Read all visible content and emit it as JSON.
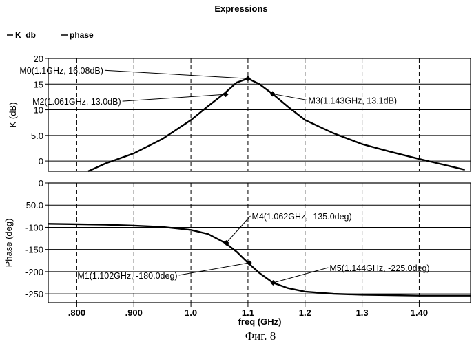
{
  "title": "Expressions",
  "legend": [
    "K_db",
    "phase"
  ],
  "caption": "Фиг. 8",
  "colors": {
    "trace": "#000000",
    "grid": "#000000",
    "background": "#ffffff"
  },
  "chart_data": [
    {
      "type": "line",
      "name": "top-panel",
      "ylabel": "K (dB)",
      "xlim": [
        0.75,
        1.49
      ],
      "ylim": [
        -2,
        20
      ],
      "grid": true,
      "yticks": [
        {
          "value": 20,
          "label": "20"
        },
        {
          "value": 15,
          "label": "15"
        },
        {
          "value": 10,
          "label": "10"
        },
        {
          "value": 5,
          "label": "5.0"
        },
        {
          "value": 0,
          "label": "0"
        }
      ],
      "series": [
        {
          "name": "K_db",
          "x": [
            0.82,
            0.85,
            0.9,
            0.95,
            1.0,
            1.03,
            1.06,
            1.08,
            1.1,
            1.12,
            1.143,
            1.17,
            1.2,
            1.25,
            1.3,
            1.35,
            1.4,
            1.45,
            1.48
          ],
          "y": [
            -2.0,
            -0.5,
            1.5,
            4.3,
            8.0,
            10.7,
            13.3,
            15.3,
            16.08,
            15.0,
            13.1,
            10.6,
            8.0,
            5.4,
            3.3,
            1.8,
            0.4,
            -0.9,
            -1.7
          ]
        }
      ],
      "markers": [
        {
          "label": "M0(1.1GHz, 16.08dB)",
          "x": 1.1,
          "y": 16.08
        },
        {
          "label": "M2(1.061GHz, 13.0dB)",
          "x": 1.061,
          "y": 13.0
        },
        {
          "label": "M3(1.143GHz, 13.1dB)",
          "x": 1.143,
          "y": 13.1
        }
      ]
    },
    {
      "type": "line",
      "name": "bottom-panel",
      "ylabel": "Phase (deg)",
      "xlabel": "freq (GHz)",
      "xlim": [
        0.75,
        1.49
      ],
      "ylim": [
        -270,
        0
      ],
      "grid": true,
      "yticks": [
        {
          "value": 0,
          "label": "0"
        },
        {
          "value": -50,
          "label": "-50.0"
        },
        {
          "value": -100,
          "label": "-100"
        },
        {
          "value": -150,
          "label": "-150"
        },
        {
          "value": -200,
          "label": "-200"
        },
        {
          "value": -250,
          "label": "-250"
        }
      ],
      "xticks": [
        {
          "value": 0.8,
          "label": ".800"
        },
        {
          "value": 0.9,
          "label": ".900"
        },
        {
          "value": 1.0,
          "label": "1.0"
        },
        {
          "value": 1.1,
          "label": "1.1"
        },
        {
          "value": 1.2,
          "label": "1.2"
        },
        {
          "value": 1.3,
          "label": "1.3"
        },
        {
          "value": 1.4,
          "label": "1.40"
        }
      ],
      "series": [
        {
          "name": "phase",
          "x": [
            0.75,
            0.8,
            0.85,
            0.9,
            0.95,
            1.0,
            1.03,
            1.06,
            1.08,
            1.1,
            1.12,
            1.144,
            1.17,
            1.2,
            1.25,
            1.3,
            1.35,
            1.4,
            1.45,
            1.49
          ],
          "y": [
            -92,
            -93,
            -94,
            -96,
            -99,
            -106,
            -115,
            -135,
            -155,
            -180,
            -203,
            -225,
            -237,
            -245,
            -250,
            -252,
            -253,
            -254,
            -254,
            -254
          ]
        }
      ],
      "markers": [
        {
          "label": "M4(1.062GHz, -135.0deg)",
          "x": 1.062,
          "y": -135.0
        },
        {
          "label": "M1(1.102GHz, -180.0deg)",
          "x": 1.102,
          "y": -180.0
        },
        {
          "label": "M5(1.144GHz, -225.0deg)",
          "x": 1.144,
          "y": -225.0
        }
      ]
    }
  ]
}
